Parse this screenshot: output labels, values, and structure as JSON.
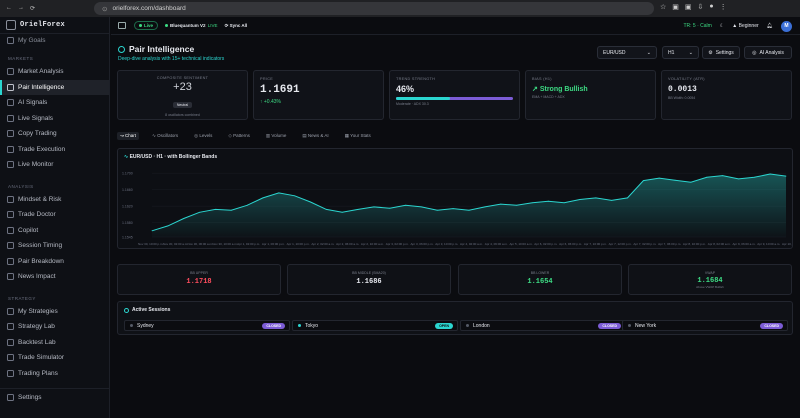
{
  "browser": {
    "url": "orielforex.com/dashboard"
  },
  "app": {
    "logo": "OrielForex"
  },
  "sidebar": {
    "top_partial": "My Goals",
    "sections": [
      {
        "label": "MARKETS",
        "items": [
          {
            "label": "Market Analysis",
            "active": false
          },
          {
            "label": "Pair Intelligence",
            "active": true
          },
          {
            "label": "AI Signals",
            "active": false
          },
          {
            "label": "Live Signals",
            "active": false
          },
          {
            "label": "Copy Trading",
            "active": false
          },
          {
            "label": "Trade Execution",
            "active": false
          },
          {
            "label": "Live Monitor",
            "active": false
          }
        ]
      },
      {
        "label": "ANALYSIS",
        "items": [
          {
            "label": "Mindset & Risk"
          },
          {
            "label": "Trade Doctor"
          },
          {
            "label": "Copilot"
          },
          {
            "label": "Session Timing"
          },
          {
            "label": "Pair Breakdown"
          },
          {
            "label": "News Impact"
          }
        ]
      },
      {
        "label": "STRATEGY",
        "items": [
          {
            "label": "My Strategies"
          },
          {
            "label": "Strategy Lab"
          },
          {
            "label": "Backtest Lab"
          },
          {
            "label": "Trade Simulator"
          },
          {
            "label": "Trading Plans"
          }
        ]
      }
    ],
    "footer": {
      "label": "Settings"
    }
  },
  "topbar": {
    "live": "Live",
    "bluequantum": "Bluequantum V2",
    "bluequantum_status": "LIVE",
    "sync": "Sync All",
    "market_state": "TR: 5 · Calm",
    "level": "Beginner",
    "avatar": "M"
  },
  "header": {
    "title": "Pair Intelligence",
    "subtitle": "Deep-dive analysis with 15+ technical indicators",
    "pair": "EUR/USD",
    "timeframe": "H1",
    "settings": "Settings",
    "ai_analysis": "AI Analysis"
  },
  "cards": {
    "sentiment": {
      "label": "COMPOSITE SENTIMENT",
      "value": "+23",
      "badge": "Neutral",
      "note": "8 oscillators combined"
    },
    "price": {
      "label": "PRICE",
      "value": "1.1691",
      "change": "↑ +0.43%"
    },
    "trend": {
      "label": "TREND STRENGTH",
      "value": "46%",
      "note": "Moderate · ADX 30.3",
      "fill": 0.46
    },
    "bias": {
      "label": "BIAS (H1)",
      "value": "Strong Bullish",
      "note": "EMA + MACD + ADX"
    },
    "volatility": {
      "label": "VOLATILITY (ATR)",
      "value": "0.0013",
      "note": "BB Width: 0.0054"
    }
  },
  "tabs": [
    "Chart",
    "Oscillators",
    "Levels",
    "Patterns",
    "Volume",
    "News & AI",
    "Your Stats"
  ],
  "chart_title": "EUR/USD · H1 · with Bollinger Bands",
  "chart_data": {
    "type": "area",
    "title": "EUR/USD · H1 · with Bollinger Bands",
    "ylim": [
      1.1545,
      1.1715
    ],
    "yticks": [
      "1.1700",
      "1.1660",
      "1.1620",
      "1.1580",
      "1.1545"
    ],
    "xticks": [
      "Nov 30, 10:00 p.m.",
      "Nov 30, 02:00 a.m.",
      "Nov 30, 06:00 a.m.",
      "Nov 30, 10:00 a.m.",
      "Apr 1, 02:00 p.m.",
      "Apr 1, 06:00 p.m.",
      "Apr 1, 10:00 p.m.",
      "Apr 2, 02:00 a.m.",
      "Apr 2, 06:00 a.m.",
      "Apr 2, 10:00 a.m.",
      "Apr 3, 02:00 p.m.",
      "Apr 3, 06:00 p.m.",
      "Apr 3, 10:00 p.m.",
      "Apr 4, 02:00 a.m.",
      "Apr 4, 06:00 a.m.",
      "Apr 5, 10:00 a.m.",
      "Apr 6, 02:00 p.m.",
      "Apr 6, 06:00 p.m.",
      "Apr 7, 10:00 p.m.",
      "Apr 7, 12:00 p.m.",
      "Apr 7, 02:00 p.m.",
      "Apr 7, 06:00 p.m.",
      "Apr 8, 10:00 p.m.",
      "Apr 8, 02:00 a.m.",
      "Apr 9, 06:00 a.m.",
      "Apr 9, 10:00 a.m.",
      "Apr 10, 02:00 p.m."
    ],
    "series": [
      {
        "values": [
          1.156,
          1.1572,
          1.159,
          1.1605,
          1.1612,
          1.161,
          1.1622,
          1.164,
          1.1652,
          1.1645,
          1.163,
          1.1612,
          1.1605,
          1.1612,
          1.1618,
          1.1615,
          1.1622,
          1.1618,
          1.161,
          1.1614,
          1.161,
          1.1618,
          1.1625,
          1.1622,
          1.1628,
          1.1632,
          1.1628,
          1.1636,
          1.164,
          1.1634,
          1.164,
          1.1682,
          1.1688,
          1.1683,
          1.1678,
          1.169,
          1.1694,
          1.1686,
          1.169,
          1.1698,
          1.1693
        ]
      }
    ]
  },
  "bollinger": [
    {
      "label": "BB UPPER",
      "value": "1.1718",
      "color": "#ff4d5e"
    },
    {
      "label": "BB MIDDLE (SMA20)",
      "value": "1.1686",
      "color": "#e6e8ee"
    },
    {
      "label": "BB LOWER",
      "value": "1.1654",
      "color": "#3ddc84"
    },
    {
      "label": "VWAP",
      "value": "1.1684",
      "color": "#3ddc84",
      "note": "Above VWAP Bullish"
    }
  ],
  "sessions": {
    "title": "Active Sessions",
    "items": [
      {
        "name": "Sydney",
        "status": "CLOSED"
      },
      {
        "name": "Tokyo",
        "status": "OPEN"
      },
      {
        "name": "London",
        "status": "CLOSED"
      },
      {
        "name": "New York",
        "status": "CLOSED"
      }
    ]
  }
}
